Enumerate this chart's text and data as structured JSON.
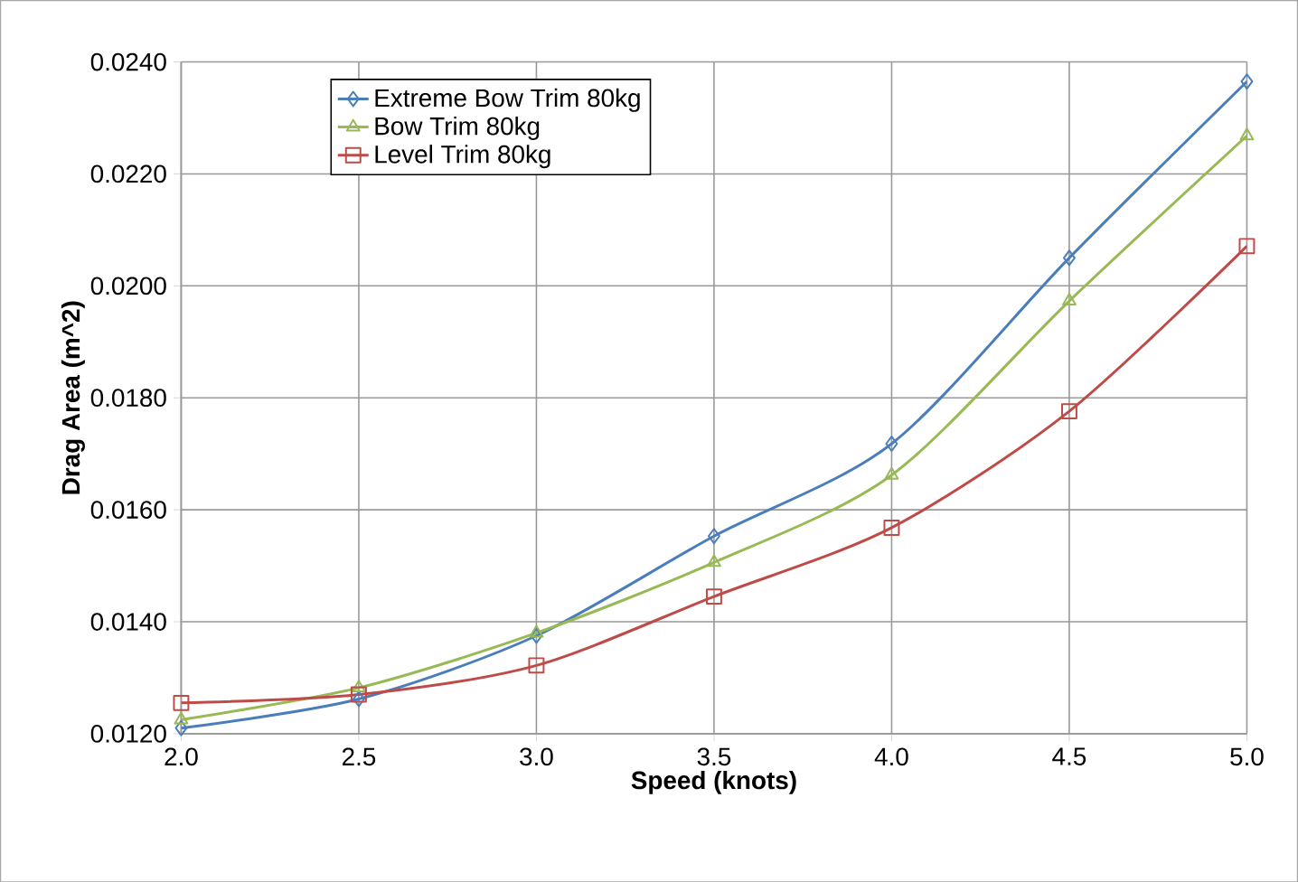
{
  "chart_data": {
    "type": "line",
    "xlabel": "Speed (knots)",
    "ylabel": "Drag Area (m^2)",
    "x": [
      2.0,
      2.5,
      3.0,
      3.5,
      4.0,
      4.5,
      5.0
    ],
    "series": [
      {
        "name": "Extreme Bow Trim 80kg",
        "color": "#4a7ebb",
        "marker": "diamond",
        "values": [
          0.0121,
          0.01262,
          0.01375,
          0.01553,
          0.01718,
          0.0205,
          0.02365
        ]
      },
      {
        "name": "Bow Trim 80kg",
        "color": "#98b954",
        "marker": "triangle",
        "values": [
          0.01225,
          0.01282,
          0.0138,
          0.01506,
          0.01662,
          0.01973,
          0.02268
        ]
      },
      {
        "name": "Level Trim 80kg",
        "color": "#be4b48",
        "marker": "square",
        "values": [
          0.01255,
          0.0127,
          0.01322,
          0.01445,
          0.01568,
          0.01776,
          0.02071
        ]
      }
    ],
    "xlim": [
      2.0,
      5.0
    ],
    "ylim": [
      0.012,
      0.024
    ],
    "xticks": [
      {
        "value": 2.0,
        "label": "2.0"
      },
      {
        "value": 2.5,
        "label": "2.5"
      },
      {
        "value": 3.0,
        "label": "3.0"
      },
      {
        "value": 3.5,
        "label": "3.5"
      },
      {
        "value": 4.0,
        "label": "4.0"
      },
      {
        "value": 4.5,
        "label": "4.5"
      },
      {
        "value": 5.0,
        "label": "5.0"
      }
    ],
    "yticks": [
      {
        "value": 0.012,
        "label": "0.0120"
      },
      {
        "value": 0.014,
        "label": "0.0140"
      },
      {
        "value": 0.016,
        "label": "0.0160"
      },
      {
        "value": 0.018,
        "label": "0.0180"
      },
      {
        "value": 0.02,
        "label": "0.0200"
      },
      {
        "value": 0.022,
        "label": "0.0220"
      },
      {
        "value": 0.024,
        "label": "0.0240"
      }
    ],
    "grid": true,
    "legend": "top left",
    "line_style": "solid"
  }
}
